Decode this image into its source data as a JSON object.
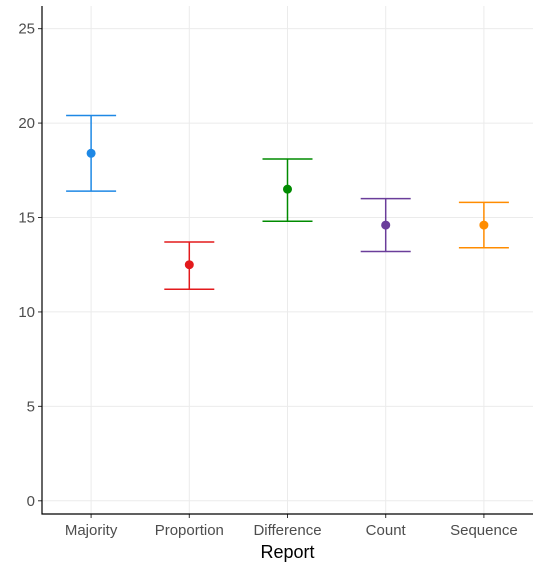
{
  "chart_data": {
    "type": "errorbar",
    "categories": [
      "Majority",
      "Proportion",
      "Difference",
      "Count",
      "Sequence"
    ],
    "points": [
      {
        "category": "Majority",
        "y": 18.4,
        "ymin": 16.4,
        "ymax": 20.4,
        "color": "#1e88e5"
      },
      {
        "category": "Proportion",
        "y": 12.5,
        "ymin": 11.2,
        "ymax": 13.7,
        "color": "#e31a1c"
      },
      {
        "category": "Difference",
        "y": 16.5,
        "ymin": 14.8,
        "ymax": 18.1,
        "color": "#008b00"
      },
      {
        "category": "Count",
        "y": 14.6,
        "ymin": 13.2,
        "ymax": 16.0,
        "color": "#6a3d9a"
      },
      {
        "category": "Sequence",
        "y": 14.6,
        "ymin": 13.4,
        "ymax": 15.8,
        "color": "#ff8c00"
      }
    ],
    "yticks": [
      0,
      5,
      10,
      15,
      20,
      25
    ],
    "ylim": [
      -0.7,
      26.2
    ],
    "xlabel": "Report",
    "ylabel": "",
    "grid": true,
    "legend": "none"
  }
}
